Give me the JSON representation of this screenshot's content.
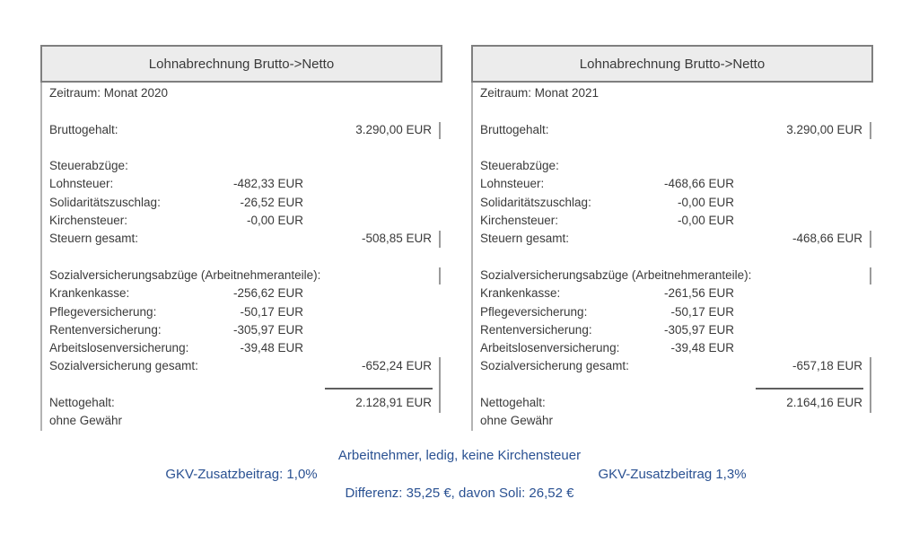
{
  "colors": {
    "footer_blue": "#2a5192",
    "header_fill": "#ececec",
    "header_border_gray": "#7f7f7f",
    "body_border_gray": "#b3b3b3",
    "text_gray": "#3a3a3a"
  },
  "panels": [
    {
      "title": "Lohnabrechnung Brutto->Netto",
      "zeitraum": "Zeitraum: Monat 2020",
      "bruttogehalt": {
        "label": "Bruttogehalt:",
        "total": "3.290,00 EUR"
      },
      "steuerabzuege_label": "Steuerabzüge:",
      "lohnsteuer": {
        "label": "Lohnsteuer:",
        "value": "-482,33 EUR"
      },
      "solidaritaetszuschlag": {
        "label": "Solidaritätszuschlag:",
        "value": "-26,52 EUR"
      },
      "kirchensteuer": {
        "label": "Kirchensteuer:",
        "value": "-0,00 EUR"
      },
      "steuern_gesamt": {
        "label": "Steuern gesamt:",
        "total": "-508,85 EUR"
      },
      "sozialabzuege_label": "Sozialversicherungsabzüge (Arbeitnehmeranteile):",
      "krankenkasse": {
        "label": "Krankenkasse:",
        "value": "-256,62 EUR"
      },
      "pflegeversicherung": {
        "label": "Pflegeversicherung:",
        "value": "-50,17 EUR"
      },
      "rentenversicherung": {
        "label": "Rentenversicherung:",
        "value": "-305,97 EUR"
      },
      "arbeitslosenversicherung": {
        "label": "Arbeitslosenversicherung:",
        "value": "-39,48 EUR"
      },
      "sozialversicherung_gesamt": {
        "label": "Sozialversicherung gesamt:",
        "total": "-652,24 EUR"
      },
      "nettogehalt": {
        "label": "Nettogehalt:",
        "total": "2.128,91 EUR"
      },
      "disclaimer": "ohne Gewähr"
    },
    {
      "title": "Lohnabrechnung Brutto->Netto",
      "zeitraum": "Zeitraum: Monat 2021",
      "bruttogehalt": {
        "label": "Bruttogehalt:",
        "total": "3.290,00 EUR"
      },
      "steuerabzuege_label": "Steuerabzüge:",
      "lohnsteuer": {
        "label": "Lohnsteuer:",
        "value": "-468,66 EUR"
      },
      "solidaritaetszuschlag": {
        "label": "Solidaritätszuschlag:",
        "value": "-0,00 EUR"
      },
      "kirchensteuer": {
        "label": "Kirchensteuer:",
        "value": "-0,00 EUR"
      },
      "steuern_gesamt": {
        "label": "Steuern gesamt:",
        "total": "-468,66 EUR"
      },
      "sozialabzuege_label": "Sozialversicherungsabzüge (Arbeitnehmeranteile):",
      "krankenkasse": {
        "label": "Krankenkasse:",
        "value": "-261,56 EUR"
      },
      "pflegeversicherung": {
        "label": "Pflegeversicherung:",
        "value": "-50,17 EUR"
      },
      "rentenversicherung": {
        "label": "Rentenversicherung:",
        "value": "-305,97 EUR"
      },
      "arbeitslosenversicherung": {
        "label": "Arbeitslosenversicherung:",
        "value": "-39,48 EUR"
      },
      "sozialversicherung_gesamt": {
        "label": "Sozialversicherung gesamt:",
        "total": "-657,18 EUR"
      },
      "nettogehalt": {
        "label": "Nettogehalt:",
        "total": "2.164,16 EUR"
      },
      "disclaimer": "ohne Gewähr"
    }
  ],
  "footer": {
    "line1": "Arbeitnehmer, ledig, keine Kirchensteuer",
    "left_note": "GKV-Zusatzbeitrag: 1,0%",
    "right_note": "GKV-Zusatzbeitrag 1,3%",
    "line3": "Differenz: 35,25 €, davon Soli: 26,52 €"
  }
}
